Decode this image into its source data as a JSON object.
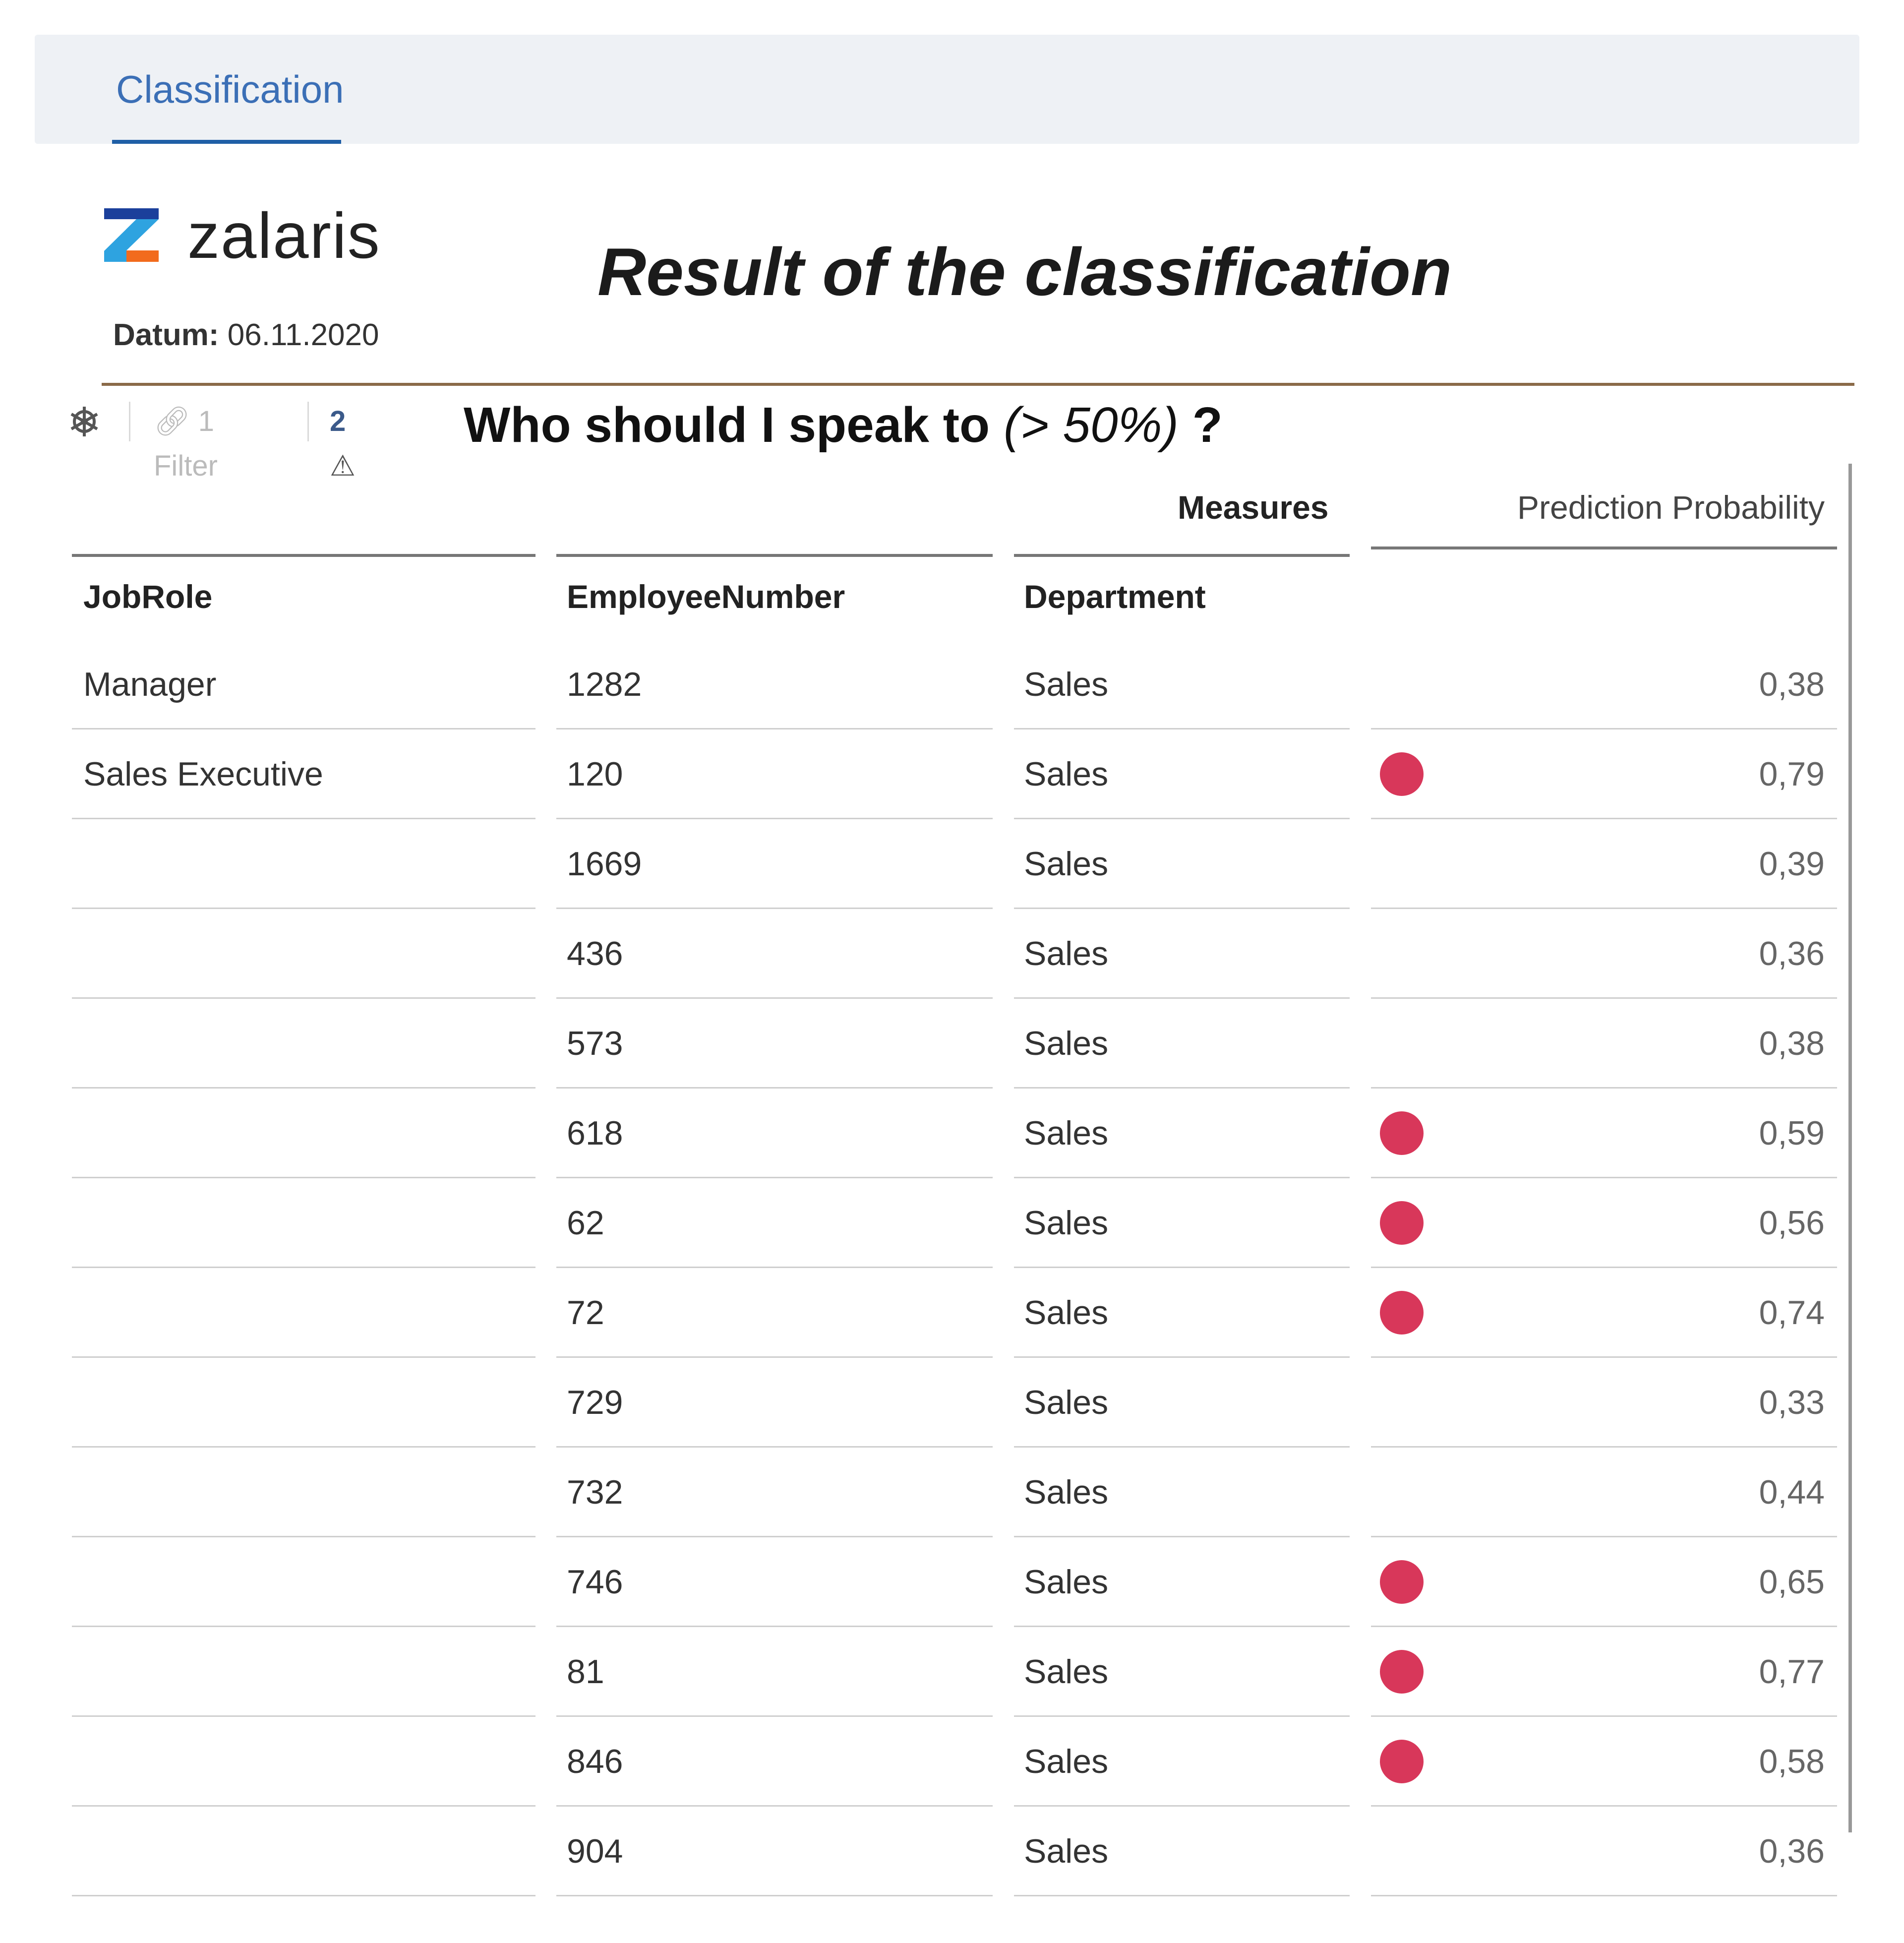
{
  "tab": {
    "label": "Classification"
  },
  "brand": {
    "name": "zalaris"
  },
  "date": {
    "label": "Datum:",
    "value": "06.11.2020"
  },
  "title": "Result of the classification",
  "question": {
    "main": "Who should I speak to",
    "threshold": "(> 50%)",
    "end": "?"
  },
  "toolbar": {
    "filter_label": "1 Filter",
    "warnings_count": "2"
  },
  "table": {
    "measures_label": "Measures",
    "measure_column": "Prediction Probability",
    "columns": [
      "JobRole",
      "EmployeeNumber",
      "Department"
    ],
    "highlight_color": "#d8375a",
    "highlight_threshold": 0.5,
    "rows": [
      {
        "jobrole": "Manager",
        "employee": "1282",
        "department": "Sales",
        "probability": "0,38",
        "flag": false
      },
      {
        "jobrole": "Sales Executive",
        "employee": "120",
        "department": "Sales",
        "probability": "0,79",
        "flag": true
      },
      {
        "jobrole": "",
        "employee": "1669",
        "department": "Sales",
        "probability": "0,39",
        "flag": false
      },
      {
        "jobrole": "",
        "employee": "436",
        "department": "Sales",
        "probability": "0,36",
        "flag": false
      },
      {
        "jobrole": "",
        "employee": "573",
        "department": "Sales",
        "probability": "0,38",
        "flag": false
      },
      {
        "jobrole": "",
        "employee": "618",
        "department": "Sales",
        "probability": "0,59",
        "flag": true
      },
      {
        "jobrole": "",
        "employee": "62",
        "department": "Sales",
        "probability": "0,56",
        "flag": true
      },
      {
        "jobrole": "",
        "employee": "72",
        "department": "Sales",
        "probability": "0,74",
        "flag": true
      },
      {
        "jobrole": "",
        "employee": "729",
        "department": "Sales",
        "probability": "0,33",
        "flag": false
      },
      {
        "jobrole": "",
        "employee": "732",
        "department": "Sales",
        "probability": "0,44",
        "flag": false
      },
      {
        "jobrole": "",
        "employee": "746",
        "department": "Sales",
        "probability": "0,65",
        "flag": true
      },
      {
        "jobrole": "",
        "employee": "81",
        "department": "Sales",
        "probability": "0,77",
        "flag": true
      },
      {
        "jobrole": "",
        "employee": "846",
        "department": "Sales",
        "probability": "0,58",
        "flag": true
      },
      {
        "jobrole": "",
        "employee": "904",
        "department": "Sales",
        "probability": "0,36",
        "flag": false
      }
    ]
  }
}
